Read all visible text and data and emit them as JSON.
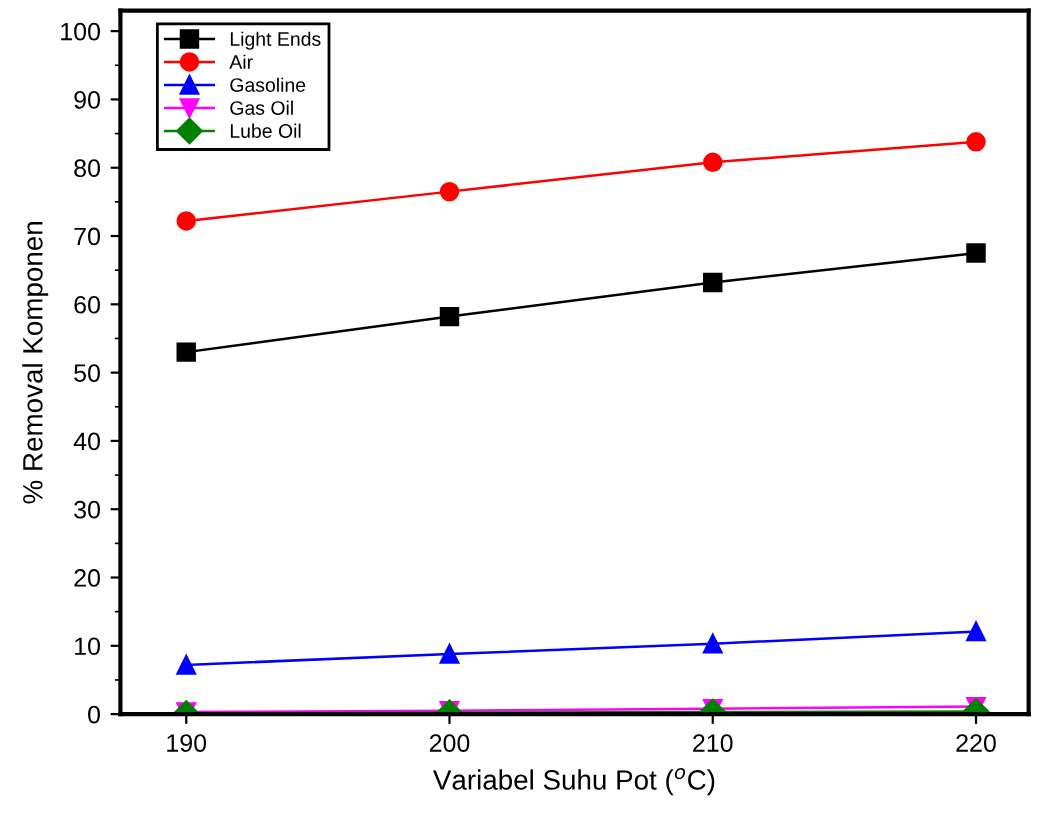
{
  "chart_data": {
    "type": "line",
    "xlabel": "Variabel Suhu Pot ($^{o}$C)",
    "ylabel": "% Removal Komponen",
    "x": [
      190,
      200,
      210,
      220
    ],
    "series": [
      {
        "name": "Light Ends",
        "color": "#000000",
        "marker": "square",
        "values": [
          53.0,
          58.2,
          63.2,
          67.5
        ]
      },
      {
        "name": "Air",
        "color": "#ff0000",
        "marker": "circle",
        "values": [
          72.2,
          76.5,
          80.8,
          83.8
        ]
      },
      {
        "name": "Gasoline",
        "color": "#0000ff",
        "marker": "triangle",
        "values": [
          7.2,
          8.8,
          10.3,
          12.1
        ]
      },
      {
        "name": "Gas Oil",
        "color": "#ff00ff",
        "marker": "triangle_down",
        "values": [
          0.3,
          0.5,
          0.8,
          1.1
        ]
      },
      {
        "name": "Lube Oil",
        "color": "#008000",
        "marker": "diamond",
        "values": [
          0.1,
          0.2,
          0.3,
          0.4
        ]
      }
    ],
    "xlim": [
      187.5,
      222
    ],
    "ylim": [
      0,
      103
    ],
    "xticks": [
      190,
      200,
      210,
      220
    ],
    "yticks": [
      0,
      10,
      20,
      30,
      40,
      50,
      60,
      70,
      80,
      90,
      100
    ],
    "grid": false,
    "legend": "top left",
    "line_style": "solid"
  }
}
